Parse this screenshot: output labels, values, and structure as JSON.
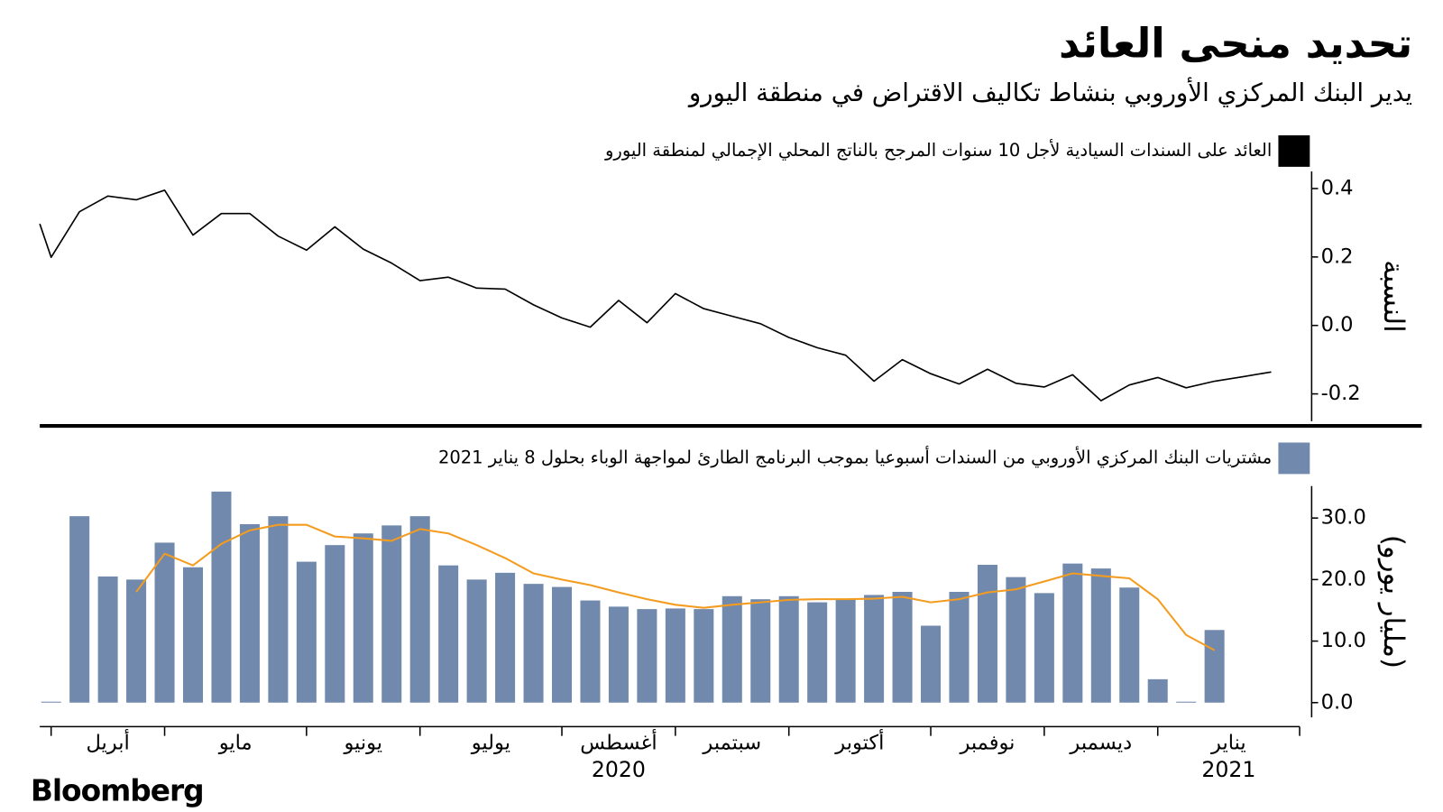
{
  "title": "تحديد منحى العائد",
  "subtitle": "يدير البنك المركزي الأوروبي بنشاط تكاليف الاقتراض في منطقة اليورو",
  "source": "Bloomberg",
  "chart_data": [
    {
      "type": "line",
      "ylabel": "النسبة",
      "xlim": [
        -0.4,
        44
      ],
      "ylim": [
        -0.28,
        0.45
      ],
      "yticks": [
        0.4,
        0.2,
        {
          "value": 0,
          "label": "0.0"
        },
        -0.2
      ],
      "series": [
        {
          "name": "العائد على السندات السيادية لأجل 10 سنوات المرجح بالناتج المحلي الإجمالي لمنطقة اليورو",
          "color": "#000000",
          "x": [
            -0.4,
            0,
            1,
            2,
            3,
            4,
            5,
            6,
            7,
            8,
            9,
            10,
            11,
            12,
            13,
            14,
            15,
            16,
            17,
            18,
            19,
            20,
            21,
            22,
            23,
            24,
            25,
            26,
            27,
            28,
            29,
            30,
            31,
            32,
            33,
            34,
            35,
            36,
            37,
            38,
            39,
            40,
            41,
            42,
            43
          ],
          "values": [
            0.297,
            0.199,
            0.332,
            0.378,
            0.367,
            0.395,
            0.264,
            0.327,
            0.327,
            0.261,
            0.22,
            0.288,
            0.223,
            0.182,
            0.131,
            0.141,
            0.109,
            0.106,
            0.06,
            0.022,
            -0.005,
            0.073,
            0.008,
            0.093,
            0.049,
            0.027,
            0.005,
            -0.035,
            -0.065,
            -0.087,
            -0.163,
            -0.1,
            -0.141,
            -0.171,
            -0.128,
            -0.169,
            -0.18,
            -0.144,
            -0.22,
            -0.174,
            -0.152,
            -0.182,
            -0.163,
            -0.15,
            -0.136
          ]
        }
      ]
    },
    {
      "type": "bar",
      "ylabel": "(مليار يورو)",
      "xlim": [
        -0.4,
        44
      ],
      "ylim": [
        -2.4,
        35.2
      ],
      "yticks": [
        {
          "value": 30,
          "label": "30.0"
        },
        {
          "value": 20,
          "label": "20.0"
        },
        {
          "value": 10,
          "label": "10.0"
        },
        {
          "value": 0,
          "label": "0.0"
        }
      ],
      "xticks": [
        0,
        4,
        9,
        13,
        18,
        22,
        26,
        31,
        35,
        39,
        44
      ],
      "month_labels": [
        {
          "label": "أبريل"
        },
        {
          "label": "مايو"
        },
        {
          "label": "يونيو"
        },
        {
          "label": "يوليو"
        },
        {
          "label": "أغسطس",
          "year": "2020"
        },
        {
          "label": "سبتمبر"
        },
        {
          "label": "أكتوبر"
        },
        {
          "label": "نوفمبر"
        },
        {
          "label": "ديسمبر"
        },
        {
          "label": "يناير",
          "year": "2021"
        }
      ],
      "x": [
        0,
        1,
        2,
        3,
        4,
        5,
        6,
        7,
        8,
        9,
        10,
        11,
        12,
        13,
        14,
        15,
        16,
        17,
        18,
        19,
        20,
        21,
        22,
        23,
        24,
        25,
        26,
        27,
        28,
        29,
        30,
        31,
        32,
        33,
        34,
        35,
        36,
        37,
        38,
        39,
        40,
        41
      ],
      "series": [
        {
          "name": "مشتريات البنك المركزي الأوروبي من السندات أسبوعيا بموجب البرنامج الطارئ لمواجهة الوباء بحلول 8 يناير 2021",
          "type": "bar",
          "color": "#7189ad",
          "values": [
            0,
            30.3,
            20.5,
            20.0,
            26,
            22,
            34.3,
            29,
            30.3,
            22.9,
            25.6,
            27.5,
            28.8,
            30.3,
            22.3,
            20,
            21.1,
            19.3,
            18.8,
            16.6,
            15.6,
            15.2,
            15.3,
            15.2,
            17.3,
            16.8,
            17.3,
            16.3,
            16.8,
            17.5,
            18,
            12.5,
            18,
            22.4,
            20.4,
            17.8,
            22.6,
            21.8,
            18.7,
            3.8,
            0,
            11.8
          ]
        },
        {
          "type": "line",
          "color": "#f39c1f",
          "values": [
            null,
            null,
            null,
            18,
            24.2,
            22.3,
            25.8,
            28,
            28.9,
            28.9,
            27,
            26.7,
            26.3,
            28.2,
            27.5,
            25.6,
            23.5,
            21,
            20,
            19.1,
            17.9,
            16.8,
            15.9,
            15.4,
            15.9,
            16.3,
            16.7,
            16.8,
            16.8,
            16.9,
            17.2,
            16.3,
            16.8,
            17.9,
            18.4,
            19.7,
            21,
            20.6,
            20.2,
            16.8,
            11,
            8.5
          ]
        }
      ]
    }
  ]
}
